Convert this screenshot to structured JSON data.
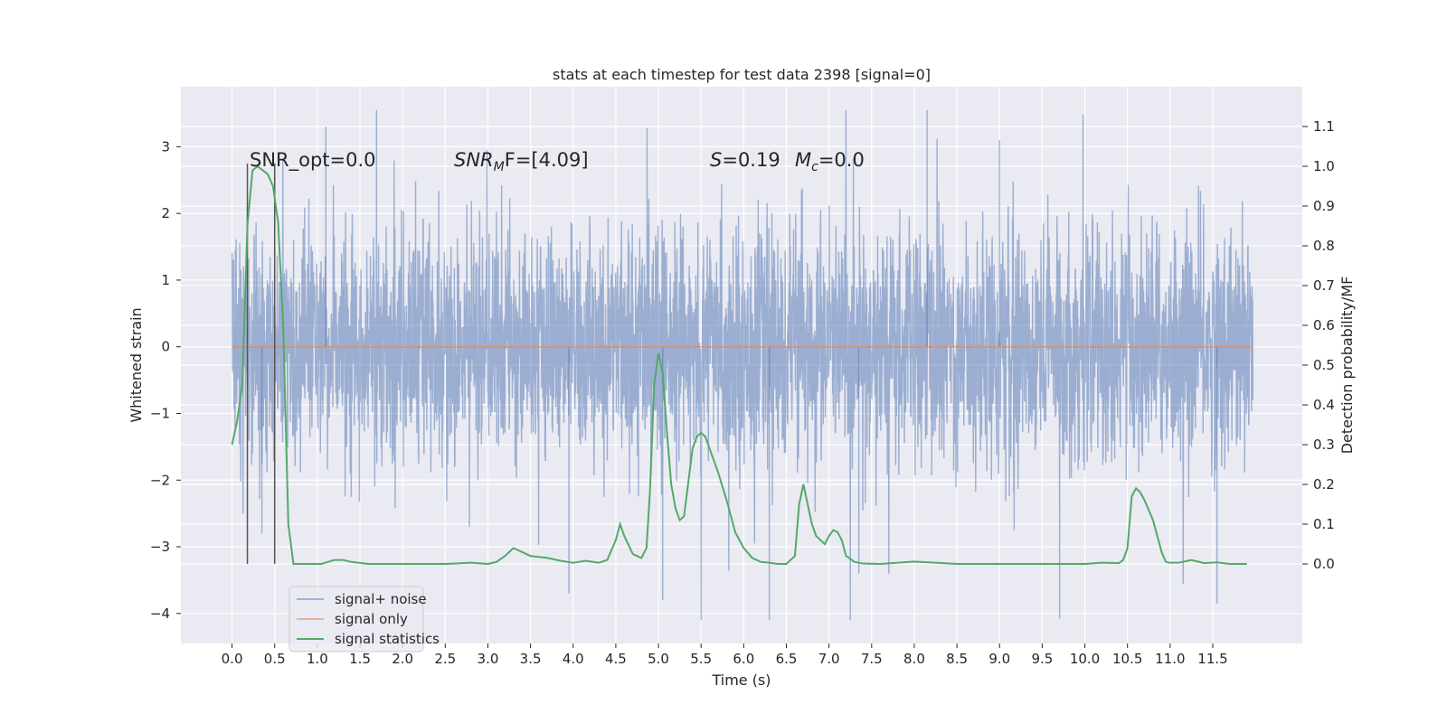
{
  "chart_data": {
    "type": "line",
    "title": "stats at each timestep for test data 2398 [signal=0]",
    "xlabel": "Time (s)",
    "ylabel": "Whitened strain",
    "y2label": "Detection probability/MF",
    "xlim": [
      -0.6,
      12.55
    ],
    "ylim": [
      -4.45,
      3.9
    ],
    "y2lim": [
      -0.2,
      1.2
    ],
    "x_ticks": [
      0.0,
      0.5,
      1.0,
      1.5,
      2.0,
      2.5,
      3.0,
      3.5,
      4.0,
      4.5,
      5.0,
      5.5,
      6.0,
      6.5,
      7.0,
      7.5,
      8.0,
      8.5,
      9.0,
      9.5,
      10.0,
      10.5,
      11.0,
      11.5
    ],
    "x_tick_labels": [
      "0.0",
      "0.5",
      "1.0",
      "1.5",
      "2.0",
      "2.5",
      "3.0",
      "3.5",
      "4.0",
      "4.5",
      "5.0",
      "5.5",
      "6.0",
      "6.5",
      "7.0",
      "7.5",
      "8.0",
      "8.5",
      "9.0",
      "9.5",
      "10.0",
      "10.5",
      "11.0",
      "11.5"
    ],
    "y_ticks": [
      -4,
      -3,
      -2,
      -1,
      0,
      1,
      2,
      3
    ],
    "y_tick_labels": [
      "−4",
      "−3",
      "−2",
      "−1",
      "0",
      "1",
      "2",
      "3"
    ],
    "y2_ticks": [
      0.0,
      0.1,
      0.2,
      0.3,
      0.4,
      0.5,
      0.6,
      0.7,
      0.8,
      0.9,
      1.0,
      1.1
    ],
    "y2_tick_labels": [
      "0.0",
      "0.1",
      "0.2",
      "0.3",
      "0.4",
      "0.5",
      "0.6",
      "0.7",
      "0.8",
      "0.9",
      "1.0",
      "1.1"
    ],
    "grid": true,
    "legend_position": "lower-left",
    "legend": [
      "signal+ noise",
      "signal only",
      "signal statistics"
    ],
    "annotations": {
      "snr_opt": "SNR_opt=0.0",
      "snr_mf_main": "SNR",
      "snr_mf_sub": "M",
      "snr_mf_tail": "F=[4.09]",
      "s_main": "S",
      "s_tail": "=0.19",
      "mc_main": "M",
      "mc_sub": "c",
      "mc_tail": "=0.0"
    },
    "vertical_markers_x": [
      0.18,
      0.5
    ],
    "series": [
      {
        "name": "signal+ noise",
        "axis": "left",
        "color": "#4c72b0",
        "t_range": [
          0.0,
          11.97
        ],
        "typical_envelope": [
          -2.0,
          2.0
        ],
        "max": 3.55,
        "min": -4.1
      },
      {
        "name": "signal only",
        "axis": "left",
        "color": "#dd8452",
        "x": [
          0.0,
          11.97
        ],
        "y": [
          0.0,
          0.0
        ]
      },
      {
        "name": "signal statistics",
        "axis": "right",
        "color": "#55a868",
        "x": [
          0.0,
          0.06,
          0.12,
          0.18,
          0.24,
          0.3,
          0.36,
          0.42,
          0.48,
          0.54,
          0.6,
          0.66,
          0.72,
          0.78,
          0.9,
          1.05,
          1.2,
          1.3,
          1.4,
          1.6,
          2.0,
          2.5,
          2.8,
          3.0,
          3.1,
          3.2,
          3.3,
          3.4,
          3.5,
          3.7,
          3.85,
          4.0,
          4.15,
          4.3,
          4.4,
          4.5,
          4.55,
          4.6,
          4.7,
          4.8,
          4.86,
          4.9,
          4.95,
          5.0,
          5.05,
          5.1,
          5.15,
          5.2,
          5.25,
          5.3,
          5.4,
          5.45,
          5.5,
          5.55,
          5.6,
          5.7,
          5.8,
          5.9,
          6.0,
          6.1,
          6.2,
          6.3,
          6.4,
          6.5,
          6.6,
          6.65,
          6.7,
          6.75,
          6.8,
          6.85,
          6.9,
          6.95,
          7.0,
          7.05,
          7.1,
          7.15,
          7.2,
          7.3,
          7.4,
          7.6,
          8.0,
          8.5,
          9.0,
          9.5,
          10.0,
          10.2,
          10.4,
          10.45,
          10.5,
          10.55,
          10.6,
          10.65,
          10.7,
          10.8,
          10.9,
          10.95,
          11.0,
          11.1,
          11.25,
          11.4,
          11.55,
          11.7,
          11.9
        ],
        "y": [
          0.3,
          0.36,
          0.45,
          0.85,
          0.99,
          1.0,
          0.99,
          0.98,
          0.95,
          0.86,
          0.6,
          0.1,
          0.0,
          0.0,
          0.0,
          0.0,
          0.01,
          0.01,
          0.005,
          0.0,
          0.0,
          0.0,
          0.003,
          0.0,
          0.005,
          0.02,
          0.04,
          0.03,
          0.02,
          0.015,
          0.008,
          0.003,
          0.008,
          0.003,
          0.01,
          0.06,
          0.1,
          0.07,
          0.025,
          0.015,
          0.04,
          0.18,
          0.45,
          0.53,
          0.48,
          0.33,
          0.2,
          0.14,
          0.11,
          0.12,
          0.29,
          0.32,
          0.33,
          0.32,
          0.29,
          0.23,
          0.16,
          0.08,
          0.04,
          0.015,
          0.005,
          0.003,
          0.0,
          0.0,
          0.02,
          0.15,
          0.2,
          0.15,
          0.1,
          0.07,
          0.06,
          0.05,
          0.07,
          0.085,
          0.08,
          0.06,
          0.02,
          0.005,
          0.001,
          0.0,
          0.006,
          0.0,
          0.0,
          0.0,
          0.0,
          0.003,
          0.002,
          0.01,
          0.04,
          0.17,
          0.19,
          0.18,
          0.16,
          0.11,
          0.03,
          0.005,
          0.003,
          0.003,
          0.01,
          0.002,
          0.004,
          0.0,
          0.0
        ]
      }
    ]
  }
}
